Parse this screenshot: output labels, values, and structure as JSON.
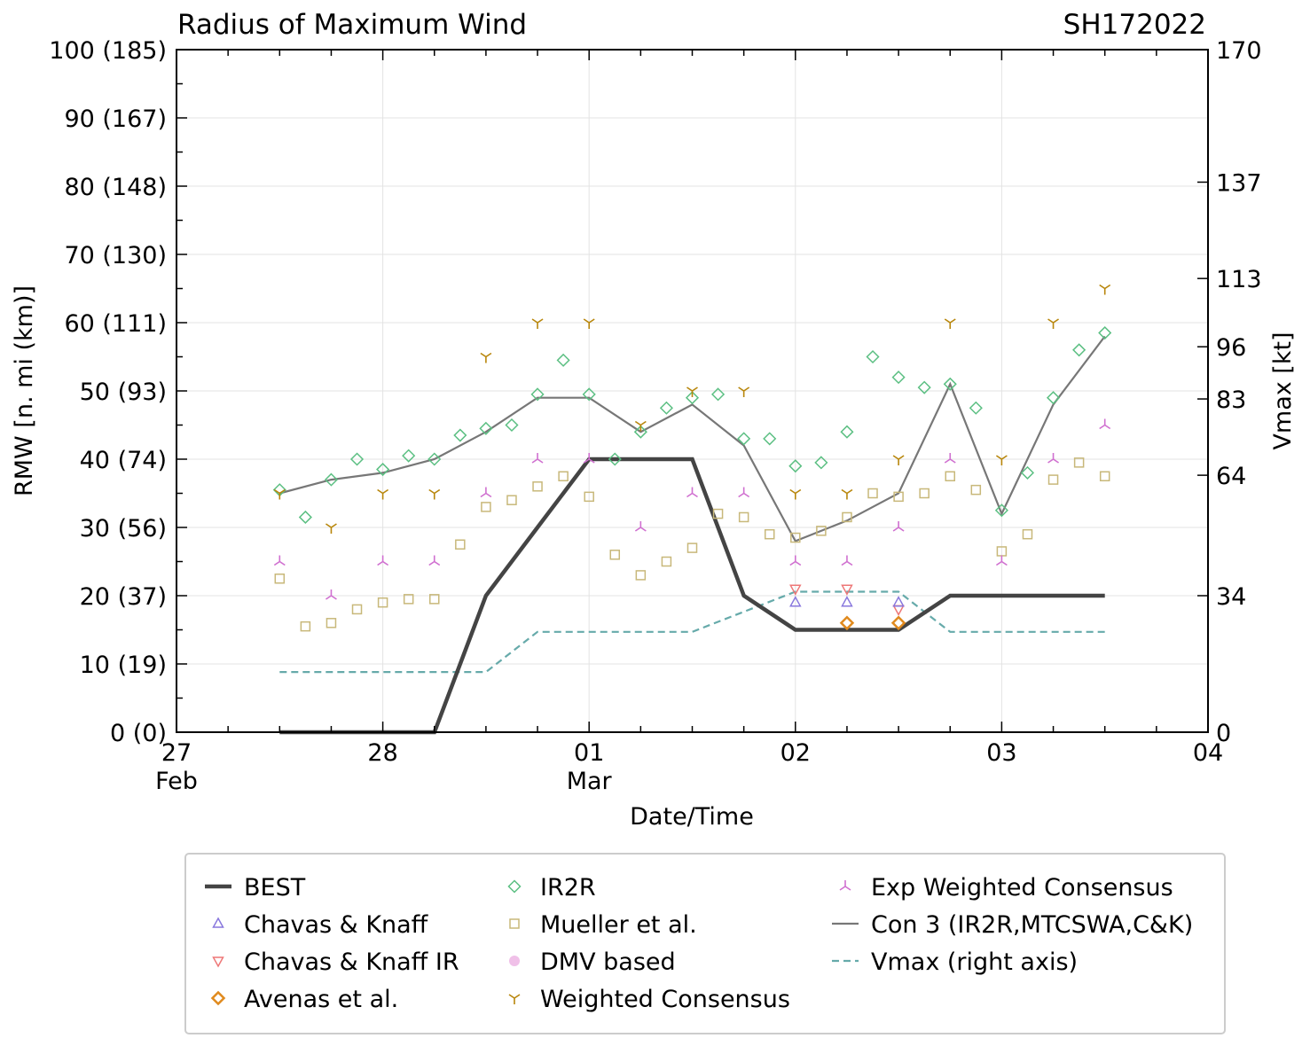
{
  "chart_data": {
    "type": "line",
    "title": "Radius of Maximum Wind",
    "storm_id": "SH172022",
    "xlabel": "Date/Time",
    "ylabel": "RMW [n. mi (km)]",
    "y2label": "Vmax [kt]",
    "x_unit": "days after 27 Feb 00Z",
    "xlim": [
      0,
      5
    ],
    "ylim": [
      0,
      100
    ],
    "y2lim": [
      0,
      170
    ],
    "x_ticks": [
      {
        "x": 0,
        "day": "27",
        "month": "Feb"
      },
      {
        "x": 1,
        "day": "28",
        "month": ""
      },
      {
        "x": 2,
        "day": "01",
        "month": "Mar"
      },
      {
        "x": 3,
        "day": "02",
        "month": ""
      },
      {
        "x": 4,
        "day": "03",
        "month": ""
      },
      {
        "x": 5,
        "day": "04",
        "month": ""
      }
    ],
    "y_ticks": [
      {
        "v": 0,
        "label": "0 (0)"
      },
      {
        "v": 10,
        "label": "10 (19)"
      },
      {
        "v": 20,
        "label": "20 (37)"
      },
      {
        "v": 30,
        "label": "30 (56)"
      },
      {
        "v": 40,
        "label": "40 (74)"
      },
      {
        "v": 50,
        "label": "50 (93)"
      },
      {
        "v": 60,
        "label": "60 (111)"
      },
      {
        "v": 70,
        "label": "70 (130)"
      },
      {
        "v": 80,
        "label": "80 (148)"
      },
      {
        "v": 90,
        "label": "90 (167)"
      },
      {
        "v": 100,
        "label": "100 (185)"
      }
    ],
    "y2_ticks": [
      {
        "v": 0,
        "label": "0"
      },
      {
        "v": 34,
        "label": "34"
      },
      {
        "v": 64,
        "label": "64"
      },
      {
        "v": 83,
        "label": "83"
      },
      {
        "v": 96,
        "label": "96"
      },
      {
        "v": 113,
        "label": "113"
      },
      {
        "v": 137,
        "label": "137"
      },
      {
        "v": 170,
        "label": "170"
      }
    ],
    "grid": true,
    "legend": [
      {
        "key": "best",
        "label": "BEST"
      },
      {
        "key": "ck",
        "label": "Chavas & Knaff"
      },
      {
        "key": "ckir",
        "label": "Chavas & Knaff IR"
      },
      {
        "key": "avenas",
        "label": "Avenas et al."
      },
      {
        "key": "ir2r",
        "label": "IR2R"
      },
      {
        "key": "mueller",
        "label": "Mueller et al."
      },
      {
        "key": "dmv",
        "label": "DMV based"
      },
      {
        "key": "wcons",
        "label": "Weighted Consensus"
      },
      {
        "key": "expw",
        "label": "Exp Weighted Consensus"
      },
      {
        "key": "con3",
        "label": "Con 3 (IR2R,MTCSWA,C&K)"
      },
      {
        "key": "vmax",
        "label": "Vmax (right axis)"
      }
    ],
    "series": [
      {
        "key": "best",
        "name": "BEST",
        "color": "#444444",
        "style": "line",
        "x": [
          0.5,
          0.75,
          1.0,
          1.25,
          1.5,
          1.75,
          2.0,
          2.25,
          2.5,
          2.75,
          3.0,
          3.25,
          3.5,
          3.75,
          4.0,
          4.25,
          4.5
        ],
        "y": [
          0,
          0,
          0,
          0,
          20,
          30,
          40,
          40,
          40,
          20,
          15,
          15,
          15,
          20,
          20,
          20,
          20
        ]
      },
      {
        "key": "vmax",
        "name": "Vmax (right axis)",
        "color": "#66aaaa",
        "style": "dashed",
        "axis": "right",
        "x": [
          0.5,
          0.75,
          1.0,
          1.25,
          1.5,
          1.75,
          2.0,
          2.25,
          2.5,
          2.75,
          3.0,
          3.25,
          3.5,
          3.75,
          4.0,
          4.25,
          4.5
        ],
        "y": [
          15,
          15,
          15,
          15,
          15,
          25,
          25,
          25,
          25,
          30,
          35,
          35,
          35,
          25,
          25,
          25,
          25
        ]
      },
      {
        "key": "con3",
        "name": "Con 3 (IR2R,MTCSWA,C&K)",
        "color": "#777777",
        "style": "line",
        "x": [
          0.5,
          0.75,
          1.0,
          1.25,
          1.5,
          1.75,
          2.0,
          2.25,
          2.5,
          2.75,
          3.0,
          3.25,
          3.5,
          3.75,
          4.0,
          4.25,
          4.5
        ],
        "y": [
          35,
          37,
          38,
          40,
          44,
          49,
          49,
          44,
          48,
          42,
          28,
          31,
          35,
          51,
          32,
          48,
          58
        ]
      },
      {
        "key": "ir2r",
        "name": "IR2R",
        "color": "#5bbf82",
        "style": "diamond",
        "x": [
          0.5,
          0.625,
          0.75,
          0.875,
          1.0,
          1.125,
          1.25,
          1.375,
          1.5,
          1.625,
          1.75,
          1.875,
          2.0,
          2.125,
          2.25,
          2.375,
          2.5,
          2.625,
          2.75,
          2.875,
          3.0,
          3.125,
          3.25,
          3.375,
          3.5,
          3.625,
          3.75,
          3.875,
          4.0,
          4.125,
          4.25,
          4.375,
          4.5
        ],
        "y": [
          35.5,
          31.5,
          37,
          40,
          38.5,
          40.5,
          40,
          43.5,
          44.5,
          45,
          49.5,
          54.5,
          49.5,
          40,
          44,
          47.5,
          49,
          49.5,
          43,
          43,
          39,
          39.5,
          44,
          55,
          52,
          50.5,
          51,
          47.5,
          32.5,
          38,
          49,
          56,
          58.5
        ]
      },
      {
        "key": "mueller",
        "name": "Mueller et al.",
        "color": "#c8b87a",
        "style": "square",
        "x": [
          0.5,
          0.625,
          0.75,
          0.875,
          1.0,
          1.125,
          1.25,
          1.375,
          1.5,
          1.625,
          1.75,
          1.875,
          2.0,
          2.125,
          2.25,
          2.375,
          2.5,
          2.625,
          2.75,
          2.875,
          3.0,
          3.125,
          3.25,
          3.375,
          3.5,
          3.625,
          3.75,
          3.875,
          4.0,
          4.125,
          4.25,
          4.375,
          4.5
        ],
        "y": [
          22.5,
          15.5,
          16,
          18,
          19,
          19.5,
          19.5,
          27.5,
          33,
          34,
          36,
          37.5,
          34.5,
          26,
          23,
          25,
          27,
          32,
          31.5,
          29,
          28.5,
          29.5,
          31.5,
          35,
          34.5,
          35,
          37.5,
          35.5,
          26.5,
          29,
          37,
          39.5,
          37.5
        ]
      },
      {
        "key": "wcons",
        "name": "Weighted Consensus",
        "color": "#b8860b",
        "style": "tri_down",
        "x": [
          0.5,
          0.75,
          1.0,
          1.25,
          1.5,
          1.75,
          2.0,
          2.25,
          2.5,
          2.75,
          3.0,
          3.25,
          3.5,
          3.75,
          4.0,
          4.25,
          4.5
        ],
        "y": [
          35,
          30,
          35,
          35,
          55,
          60,
          60,
          45,
          50,
          50,
          35,
          35,
          40,
          60,
          40,
          60,
          65
        ]
      },
      {
        "key": "expw",
        "name": "Exp Weighted Consensus",
        "color": "#d070d0",
        "style": "tri_up",
        "x": [
          0.5,
          0.75,
          1.0,
          1.25,
          1.5,
          1.75,
          2.0,
          2.25,
          2.5,
          2.75,
          3.0,
          3.25,
          3.5,
          3.75,
          4.0,
          4.25,
          4.5
        ],
        "y": [
          25,
          20,
          25,
          25,
          35,
          40,
          40,
          30,
          35,
          35,
          25,
          25,
          30,
          40,
          25,
          40,
          45
        ]
      },
      {
        "key": "ck",
        "name": "Chavas & Knaff",
        "color": "#8877dd",
        "style": "triangle_up",
        "x": [
          3.0,
          3.25,
          3.5
        ],
        "y": [
          19,
          19,
          19
        ]
      },
      {
        "key": "ckir",
        "name": "Chavas & Knaff IR",
        "color": "#ee7777",
        "style": "triangle_down",
        "x": [
          3.0,
          3.25,
          3.5
        ],
        "y": [
          21,
          21,
          18
        ]
      },
      {
        "key": "avenas",
        "name": "Avenas et al.",
        "color": "#e08a1e",
        "style": "diamond_bold",
        "x": [
          3.25,
          3.5
        ],
        "y": [
          16,
          16
        ]
      },
      {
        "key": "dmv",
        "name": "DMV based",
        "color": "#f0c0e8",
        "style": "dot",
        "x": [],
        "y": []
      }
    ]
  }
}
